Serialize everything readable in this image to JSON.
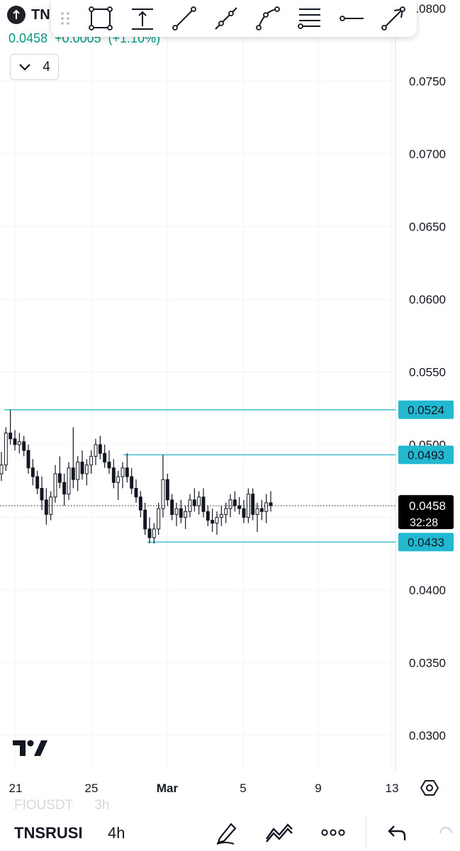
{
  "symbol": {
    "short": "TN",
    "name": "TNSRUSDT",
    "name_display": "TNSRUSI",
    "last_price": "0.0458",
    "change": "+0.0005 (+1.10%)",
    "change_display": "+0.0005",
    "change_pct": "(+1.10%)"
  },
  "indicators_count": "4",
  "drawing_tools": [
    "rectangle-tool",
    "measure-tool",
    "trend-line-tool",
    "ray-tool",
    "path-tool",
    "fib-tool",
    "horizontal-ray-tool",
    "arrow-tool"
  ],
  "bottom_bar": {
    "ghost_symbol": "FIOUSDT",
    "ghost_interval": "3h",
    "interval": "4h",
    "icons": [
      "drawing-pencil-icon",
      "indicators-icon",
      "more-icon",
      "undo-icon"
    ]
  },
  "colors": {
    "up": "#089981",
    "level_line": "#22b8cf",
    "level_label_bg": "#22b8cf",
    "price_label_bg": "#000000",
    "candle": "#131722"
  },
  "chart_data": {
    "type": "candlestick",
    "y_axis": {
      "range": [
        0.0275,
        0.0805
      ],
      "ticks": [
        "0.0800",
        "0.0750",
        "0.0700",
        "0.0650",
        "0.0600",
        "0.0550",
        "0.0500",
        "0.0450",
        "0.0400",
        "0.0350",
        "0.0300"
      ]
    },
    "x_axis": {
      "ticks": [
        "21",
        "25",
        "Mar",
        "5",
        "9",
        "13"
      ]
    },
    "levels": [
      {
        "value": "0.0524",
        "label": "0.0524"
      },
      {
        "value": "0.0493",
        "label": "0.0493"
      },
      {
        "value": "0.0433",
        "label": "0.0433"
      }
    ],
    "current_price": {
      "value": "0.0458",
      "countdown": "32:28"
    },
    "candles": [
      [
        0.048,
        0.0495,
        0.0475,
        0.0486
      ],
      [
        0.0486,
        0.0512,
        0.0482,
        0.0508
      ],
      [
        0.0508,
        0.0524,
        0.05,
        0.0504
      ],
      [
        0.0504,
        0.051,
        0.0496,
        0.05
      ],
      [
        0.05,
        0.0508,
        0.0494,
        0.0502
      ],
      [
        0.0502,
        0.0506,
        0.0492,
        0.0496
      ],
      [
        0.0496,
        0.05,
        0.048,
        0.0484
      ],
      [
        0.0484,
        0.049,
        0.0472,
        0.0478
      ],
      [
        0.0478,
        0.0482,
        0.0466,
        0.047
      ],
      [
        0.047,
        0.0478,
        0.0455,
        0.0462
      ],
      [
        0.0462,
        0.047,
        0.0445,
        0.0452
      ],
      [
        0.0452,
        0.0468,
        0.0448,
        0.0464
      ],
      [
        0.0464,
        0.0486,
        0.046,
        0.048
      ],
      [
        0.048,
        0.0492,
        0.047,
        0.0474
      ],
      [
        0.0474,
        0.048,
        0.0458,
        0.0466
      ],
      [
        0.0466,
        0.0488,
        0.0462,
        0.0484
      ],
      [
        0.0484,
        0.0512,
        0.047,
        0.0476
      ],
      [
        0.0476,
        0.0492,
        0.0468,
        0.0488
      ],
      [
        0.0488,
        0.0496,
        0.0476,
        0.048
      ],
      [
        0.048,
        0.049,
        0.0472,
        0.0486
      ],
      [
        0.0486,
        0.0496,
        0.048,
        0.0492
      ],
      [
        0.0492,
        0.0504,
        0.0486,
        0.05
      ],
      [
        0.05,
        0.0506,
        0.049,
        0.0494
      ],
      [
        0.0494,
        0.05,
        0.0484,
        0.0488
      ],
      [
        0.0488,
        0.0496,
        0.048,
        0.0484
      ],
      [
        0.0484,
        0.049,
        0.047,
        0.0474
      ],
      [
        0.0474,
        0.0482,
        0.0462,
        0.0478
      ],
      [
        0.0478,
        0.0488,
        0.047,
        0.0484
      ],
      [
        0.0484,
        0.0494,
        0.0474,
        0.0478
      ],
      [
        0.0478,
        0.0484,
        0.0466,
        0.047
      ],
      [
        0.047,
        0.0476,
        0.046,
        0.0464
      ],
      [
        0.0464,
        0.0468,
        0.045,
        0.0455
      ],
      [
        0.0455,
        0.046,
        0.0438,
        0.0442
      ],
      [
        0.0442,
        0.045,
        0.0432,
        0.0436
      ],
      [
        0.0436,
        0.0446,
        0.0432,
        0.0442
      ],
      [
        0.0442,
        0.046,
        0.0438,
        0.0456
      ],
      [
        0.0456,
        0.0493,
        0.045,
        0.0476
      ],
      [
        0.0476,
        0.048,
        0.0458,
        0.0462
      ],
      [
        0.0462,
        0.0466,
        0.0448,
        0.0452
      ],
      [
        0.0452,
        0.046,
        0.0444,
        0.0456
      ],
      [
        0.0456,
        0.0462,
        0.0446,
        0.045
      ],
      [
        0.045,
        0.0458,
        0.0442,
        0.0454
      ],
      [
        0.0454,
        0.0466,
        0.045,
        0.0462
      ],
      [
        0.0462,
        0.047,
        0.0454,
        0.0458
      ],
      [
        0.0458,
        0.0468,
        0.0452,
        0.0464
      ],
      [
        0.0464,
        0.047,
        0.045,
        0.0454
      ],
      [
        0.0454,
        0.0458,
        0.0444,
        0.0448
      ],
      [
        0.0448,
        0.0456,
        0.044,
        0.0446
      ],
      [
        0.0446,
        0.0454,
        0.0438,
        0.045
      ],
      [
        0.045,
        0.0458,
        0.0444,
        0.0452
      ],
      [
        0.0452,
        0.046,
        0.0446,
        0.0456
      ],
      [
        0.0456,
        0.0466,
        0.045,
        0.0462
      ],
      [
        0.0462,
        0.0468,
        0.0454,
        0.0458
      ],
      [
        0.0458,
        0.0464,
        0.0452,
        0.0456
      ],
      [
        0.0456,
        0.0462,
        0.0446,
        0.045
      ],
      [
        0.045,
        0.047,
        0.0446,
        0.0466
      ],
      [
        0.0466,
        0.047,
        0.0448,
        0.0452
      ],
      [
        0.0452,
        0.046,
        0.044,
        0.0456
      ],
      [
        0.0456,
        0.0462,
        0.0448,
        0.0454
      ],
      [
        0.0454,
        0.0466,
        0.0446,
        0.046
      ],
      [
        0.046,
        0.0468,
        0.0454,
        0.0458
      ]
    ]
  }
}
